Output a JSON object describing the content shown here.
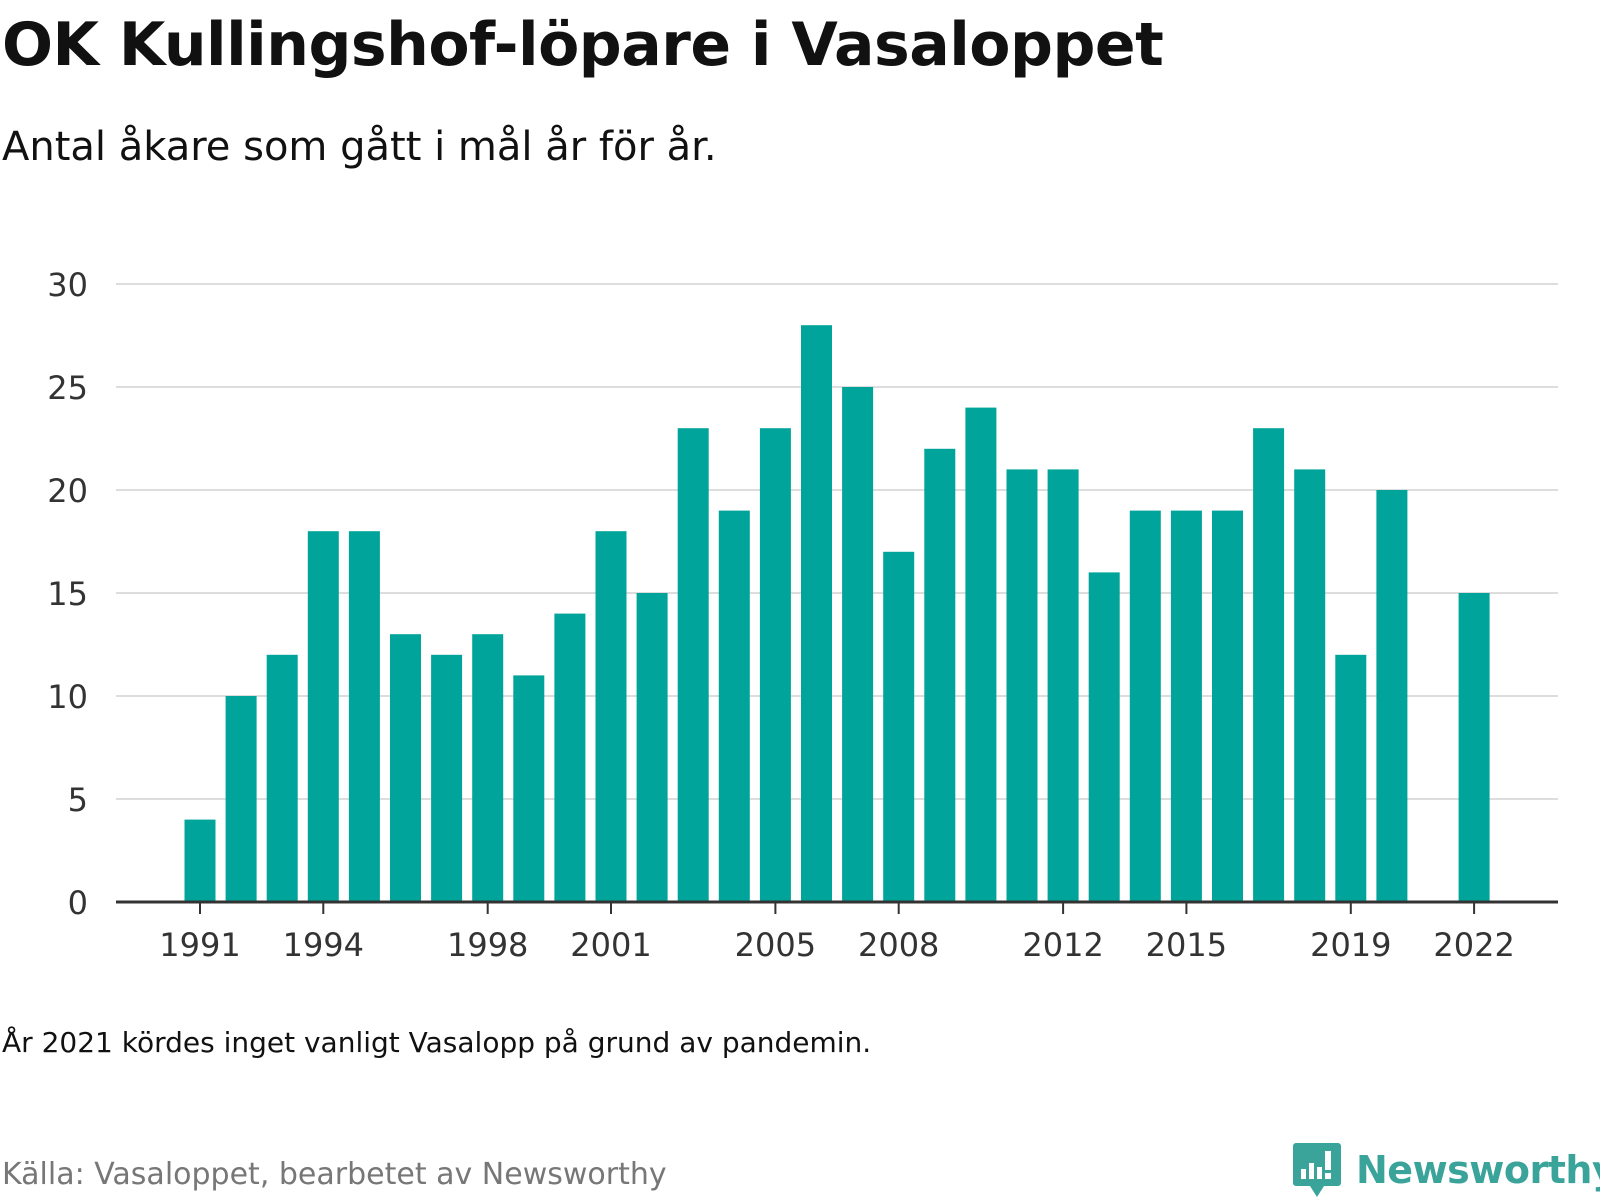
{
  "title": "OK Kullingshof-löpare i Vasaloppet",
  "subtitle": "Antal åkare som gått i mål år för år.",
  "note": "År 2021 kördes inget vanligt Vasalopp på grund av pandemin.",
  "source": "Källa: Vasaloppet, bearbetet av Newsworthy",
  "brand": {
    "name": "Newsworthy",
    "icon": "newsworthy-logo-icon"
  },
  "colors": {
    "bar": "#00a49a",
    "grid": "#dddddd",
    "axis": "#333333",
    "brand": "#3aa39a"
  },
  "chart_data": {
    "type": "bar",
    "categories": [
      "1991",
      "1992",
      "1993",
      "1994",
      "1995",
      "1996",
      "1997",
      "1998",
      "1999",
      "2000",
      "2001",
      "2002",
      "2003",
      "2004",
      "2005",
      "2006",
      "2007",
      "2008",
      "2009",
      "2010",
      "2011",
      "2012",
      "2013",
      "2014",
      "2015",
      "2016",
      "2017",
      "2018",
      "2019",
      "2020",
      "2021",
      "2022"
    ],
    "values": [
      4,
      10,
      12,
      18,
      18,
      13,
      12,
      13,
      11,
      14,
      18,
      15,
      23,
      19,
      23,
      28,
      25,
      17,
      22,
      24,
      21,
      21,
      16,
      19,
      19,
      19,
      23,
      21,
      12,
      20,
      null,
      15
    ],
    "x_tick_labels": [
      "1991",
      "1994",
      "1998",
      "2001",
      "2005",
      "2008",
      "2012",
      "2015",
      "2019",
      "2022"
    ],
    "y_ticks": [
      0,
      5,
      10,
      15,
      20,
      25,
      30
    ],
    "ylim": [
      0,
      30
    ],
    "grid": true,
    "legend": "none"
  }
}
